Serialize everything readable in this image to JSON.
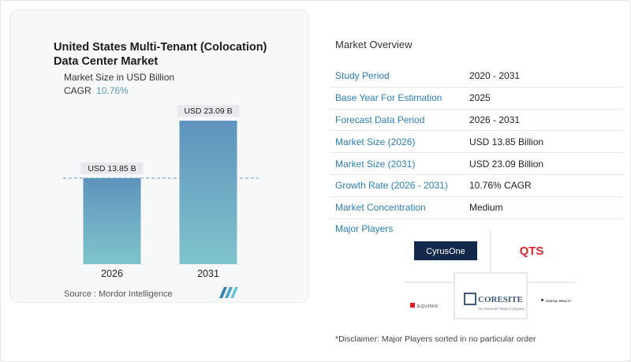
{
  "chart": {
    "title": "United States Multi-Tenant (Colocation) Data Center Market",
    "subtitle": "Market Size in USD Billion",
    "cagr_label": "CAGR",
    "cagr_value": "10.76%",
    "source": "Source :  Mordor Intelligence"
  },
  "chart_data": {
    "type": "bar",
    "categories": [
      "2026",
      "2031"
    ],
    "values": [
      13.85,
      23.09
    ],
    "data_labels": [
      "USD 13.85 B",
      "USD 23.09 B"
    ],
    "title": "United States Multi-Tenant (Colocation) Data Center Market",
    "ylabel": "Market Size in USD Billion",
    "ylim": [
      0,
      23.09
    ],
    "grid": false,
    "reference_line": 13.85,
    "colors": {
      "bar_top": "#5e93bd",
      "bar_bottom": "#7fc4cc",
      "reference_line": "#5aa3c6"
    }
  },
  "overview": {
    "title": "Market Overview",
    "rows": [
      {
        "label": "Study Period",
        "value": "2020 - 2031"
      },
      {
        "label": "Base Year For Estimation",
        "value": "2025"
      },
      {
        "label": "Forecast Data Period",
        "value": "2026 - 2031"
      },
      {
        "label": "Market Size (2026)",
        "value": "USD 13.85 Billion"
      },
      {
        "label": "Market Size (2031)",
        "value": "USD 23.09 Billion"
      },
      {
        "label": "Growth Rate (2026 - 2031)",
        "value": "10.76% CAGR"
      },
      {
        "label": "Market Concentration",
        "value": "Medium"
      }
    ]
  },
  "players": {
    "title": "Major Players",
    "logos": [
      "CyrusOne",
      "QTS",
      "EQUINIX",
      "CORESITE",
      "An American Tower Company",
      "DIGITAL REALTY"
    ],
    "colors": {
      "cyrusone_bg": "#13294b",
      "qts": "#d9262f",
      "equinix": "#e11b22",
      "coresite_box": "#3f5a7a"
    }
  },
  "disclaimer": "*Disclaimer: Major Players sorted in no particular order"
}
